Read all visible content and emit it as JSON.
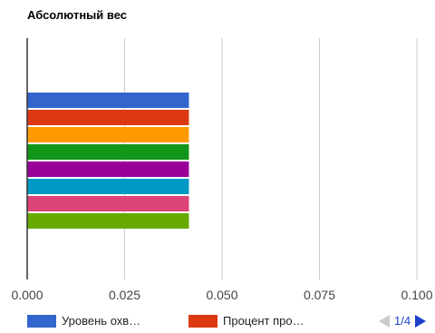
{
  "chart_data": {
    "type": "bar",
    "orientation": "horizontal",
    "title": "Абсолютный вес",
    "xlim": [
      0,
      0.1
    ],
    "x_ticks": [
      "0.000",
      "0.025",
      "0.050",
      "0.075",
      "0.100"
    ],
    "grid": true,
    "legend_position": "bottom",
    "series": [
      {
        "name": "Уровень охв…",
        "value": 0.0415,
        "color": "#3366cc"
      },
      {
        "name": "Процент про…",
        "value": 0.0415,
        "color": "#dc3912"
      },
      {
        "value": 0.0415,
        "color": "#ff9900"
      },
      {
        "value": 0.0415,
        "color": "#109618"
      },
      {
        "value": 0.0415,
        "color": "#990099"
      },
      {
        "value": 0.0415,
        "color": "#0099c6"
      },
      {
        "value": 0.0415,
        "color": "#dd4477"
      },
      {
        "value": 0.0415,
        "color": "#66aa00"
      }
    ]
  },
  "legend": {
    "page": "1/4",
    "prev_icon": "triangle-left-icon",
    "next_icon": "triangle-right-icon"
  }
}
